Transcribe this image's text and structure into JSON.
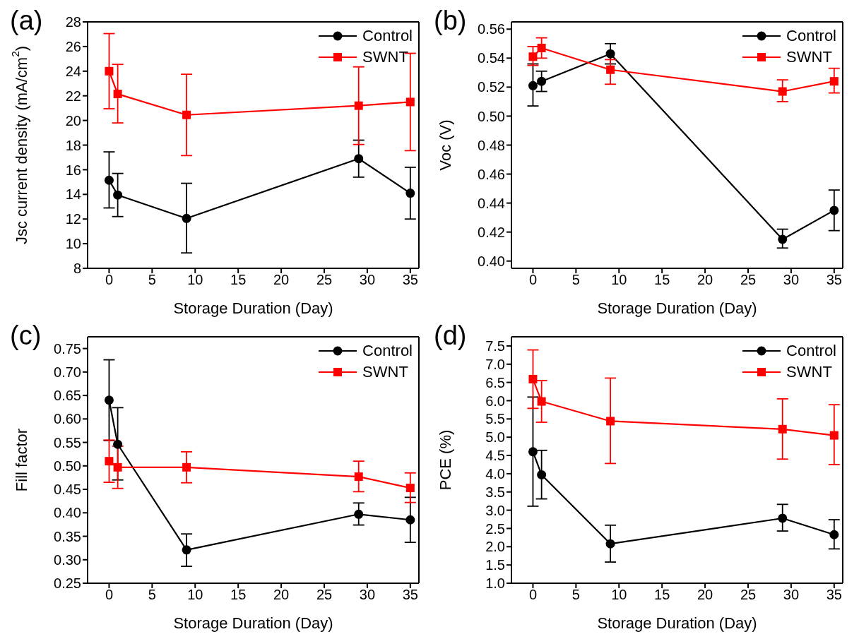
{
  "chart_data": [
    {
      "type": "line",
      "title": "(a)",
      "xlabel": "Storage Duration (Day)",
      "ylabel": "Jsc current density (mA/cm$^{2}$)",
      "x": [
        0,
        1,
        9,
        29,
        35
      ],
      "xlim": [
        -2.5,
        36
      ],
      "xticks": [
        0,
        5,
        10,
        15,
        20,
        25,
        30,
        35
      ],
      "ylim": [
        8,
        28
      ],
      "yticks": [
        8,
        10,
        12,
        14,
        16,
        18,
        20,
        22,
        24,
        26,
        28
      ],
      "legend": "top right",
      "grid": false,
      "series": [
        {
          "name": "Control",
          "color": "#000000",
          "marker": "circle",
          "values": [
            15.15,
            13.95,
            12.05,
            16.9,
            14.1
          ],
          "errors": [
            [
              12.9,
              17.45
            ],
            [
              12.2,
              15.7
            ],
            [
              9.25,
              14.9
            ],
            [
              15.4,
              18.4
            ],
            [
              12.0,
              16.2
            ]
          ]
        },
        {
          "name": "SWNT",
          "color": "#ff0000",
          "marker": "square",
          "values": [
            24.0,
            22.15,
            20.45,
            21.2,
            21.5
          ],
          "errors": [
            [
              20.95,
              27.05
            ],
            [
              19.8,
              24.55
            ],
            [
              17.15,
              23.75
            ],
            [
              18.05,
              24.35
            ],
            [
              17.55,
              25.45
            ]
          ]
        }
      ]
    },
    {
      "type": "line",
      "title": "(b)",
      "xlabel": "Storage Duration (Day)",
      "ylabel": "Voc (V)",
      "x": [
        0,
        1,
        9,
        29,
        35
      ],
      "xlim": [
        -2.5,
        36
      ],
      "xticks": [
        0,
        5,
        10,
        15,
        20,
        25,
        30,
        35
      ],
      "ylim": [
        0.395,
        0.565
      ],
      "yticks": [
        {
          "value": 0.4,
          "label": "0.40"
        },
        {
          "value": 0.42,
          "label": "0.42"
        },
        {
          "value": 0.44,
          "label": "0.44"
        },
        {
          "value": 0.46,
          "label": "0.46"
        },
        {
          "value": 0.48,
          "label": "0.48"
        },
        {
          "value": 0.5,
          "label": "0.50"
        },
        {
          "value": 0.52,
          "label": "0.52"
        },
        {
          "value": 0.54,
          "label": "0.54"
        },
        {
          "value": 0.56,
          "label": "0.56"
        }
      ],
      "legend": "top right",
      "grid": false,
      "series": [
        {
          "name": "Control",
          "color": "#000000",
          "marker": "circle",
          "values": [
            0.521,
            0.524,
            0.543,
            0.415,
            0.435
          ],
          "errors": [
            [
              0.507,
              0.536
            ],
            [
              0.517,
              0.531
            ],
            [
              0.536,
              0.55
            ],
            [
              0.409,
              0.422
            ],
            [
              0.421,
              0.449
            ]
          ]
        },
        {
          "name": "SWNT",
          "color": "#ff0000",
          "marker": "square",
          "values": [
            0.541,
            0.547,
            0.532,
            0.517,
            0.524
          ],
          "errors": [
            [
              0.535,
              0.548
            ],
            [
              0.54,
              0.554
            ],
            [
              0.522,
              0.539
            ],
            [
              0.51,
              0.525
            ],
            [
              0.516,
              0.533
            ]
          ]
        }
      ]
    },
    {
      "type": "line",
      "title": "(c)",
      "xlabel": "Storage Duration (Day)",
      "ylabel": "Fill factor",
      "x": [
        0,
        1,
        9,
        29,
        35
      ],
      "xlim": [
        -2.5,
        36
      ],
      "xticks": [
        0,
        5,
        10,
        15,
        20,
        25,
        30,
        35
      ],
      "ylim": [
        0.25,
        0.775
      ],
      "yticks": [
        0.25,
        {
          "value": 0.3,
          "label": "0.30"
        },
        0.35,
        {
          "value": 0.4,
          "label": "0.40"
        },
        0.45,
        {
          "value": 0.5,
          "label": "0.50"
        },
        0.55,
        {
          "value": 0.6,
          "label": "0.60"
        },
        0.65,
        {
          "value": 0.7,
          "label": "0.70"
        },
        0.75
      ],
      "legend": "top right",
      "grid": false,
      "series": [
        {
          "name": "Control",
          "color": "#000000",
          "marker": "circle",
          "values": [
            0.64,
            0.546,
            0.321,
            0.397,
            0.385
          ],
          "errors": [
            [
              0.554,
              0.726
            ],
            [
              0.47,
              0.624
            ],
            [
              0.286,
              0.355
            ],
            [
              0.374,
              0.421
            ],
            [
              0.337,
              0.433
            ]
          ]
        },
        {
          "name": "SWNT",
          "color": "#ff0000",
          "marker": "square",
          "values": [
            0.51,
            0.497,
            0.497,
            0.477,
            0.453
          ],
          "errors": [
            [
              0.465,
              0.555
            ],
            [
              0.452,
              0.542
            ],
            [
              0.464,
              0.53
            ],
            [
              0.445,
              0.51
            ],
            [
              0.422,
              0.485
            ]
          ]
        }
      ]
    },
    {
      "type": "line",
      "title": "(d)",
      "xlabel": "Storage Duration (Day)",
      "ylabel": "PCE (%)",
      "x": [
        0,
        1,
        9,
        29,
        35
      ],
      "xlim": [
        -2.5,
        36
      ],
      "xticks": [
        0,
        5,
        10,
        15,
        20,
        25,
        30,
        35
      ],
      "ylim": [
        1.0,
        7.75
      ],
      "yticks": [
        {
          "value": 1,
          "label": "1.0"
        },
        1.5,
        {
          "value": 2,
          "label": "2.0"
        },
        2.5,
        {
          "value": 3,
          "label": "3.0"
        },
        3.5,
        {
          "value": 4,
          "label": "4.0"
        },
        4.5,
        {
          "value": 5,
          "label": "5.0"
        },
        5.5,
        {
          "value": 6,
          "label": "6.0"
        },
        6.5,
        {
          "value": 7,
          "label": "7.0"
        },
        7.5
      ],
      "legend": "top right",
      "grid": false,
      "series": [
        {
          "name": "Control",
          "color": "#000000",
          "marker": "circle",
          "values": [
            4.6,
            3.97,
            2.08,
            2.78,
            2.33
          ],
          "errors": [
            [
              3.11,
              6.1
            ],
            [
              3.31,
              4.64
            ],
            [
              1.58,
              2.59
            ],
            [
              2.43,
              3.16
            ],
            [
              1.94,
              2.74
            ]
          ]
        },
        {
          "name": "SWNT",
          "color": "#ff0000",
          "marker": "square",
          "values": [
            6.59,
            5.98,
            5.44,
            5.22,
            5.05
          ],
          "errors": [
            [
              5.79,
              7.39
            ],
            [
              5.41,
              6.55
            ],
            [
              4.28,
              6.62
            ],
            [
              4.4,
              6.05
            ],
            [
              4.25,
              5.89
            ]
          ]
        }
      ]
    }
  ]
}
